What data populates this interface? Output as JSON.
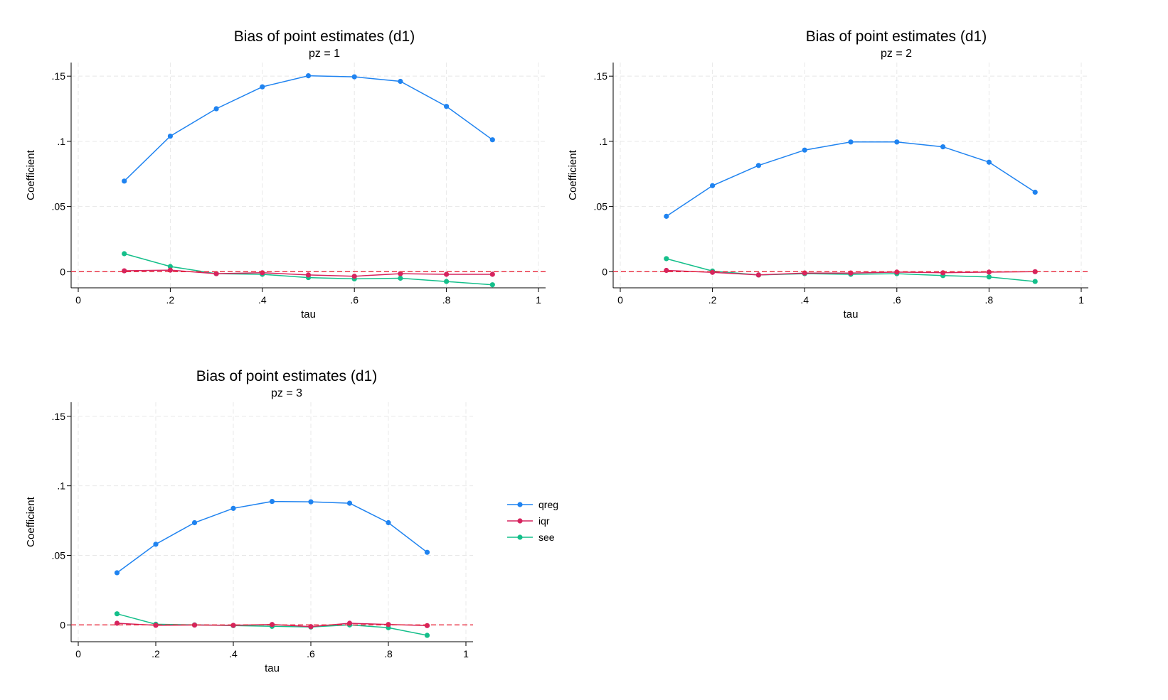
{
  "chart_data": [
    {
      "type": "line",
      "title": "Bias of point estimates (d1)",
      "subtitle": "pz = 1",
      "xlabel": "tau",
      "ylabel": "Coefficient",
      "xlim": [
        0,
        1
      ],
      "ylim": [
        -0.008,
        0.155
      ],
      "x_ticks": [
        0,
        0.2,
        0.4,
        0.6,
        0.8,
        1
      ],
      "x_tick_labels": [
        "0",
        ".2",
        ".4",
        ".6",
        ".8",
        "1"
      ],
      "y_ticks": [
        0,
        0.05,
        0.1,
        0.15
      ],
      "y_tick_labels": [
        "0",
        ".05",
        ".1",
        ".15"
      ],
      "grid": true,
      "reference_line": {
        "y": 0,
        "color": "#e8273a",
        "style": "dashed"
      },
      "x": [
        0.1,
        0.2,
        0.3,
        0.4,
        0.5,
        0.6,
        0.7,
        0.8,
        0.9
      ],
      "series": [
        {
          "name": "qreg",
          "color": "#1f83f0",
          "values": [
            0.0695,
            0.104,
            0.125,
            0.1418,
            0.1503,
            0.1495,
            0.146,
            0.1268,
            0.1012
          ]
        },
        {
          "name": "iqr",
          "color": "#d6245e",
          "values": [
            0.0007,
            0.0012,
            -0.0015,
            -0.0008,
            -0.0025,
            -0.0035,
            -0.0015,
            -0.002,
            -0.002
          ]
        },
        {
          "name": "see",
          "color": "#14bf8a",
          "values": [
            0.0138,
            0.004,
            -0.0015,
            -0.002,
            -0.0045,
            -0.0055,
            -0.005,
            -0.0075,
            -0.01
          ]
        }
      ]
    },
    {
      "type": "line",
      "title": "Bias of point estimates (d1)",
      "subtitle": "pz = 2",
      "xlabel": "tau",
      "ylabel": "Coefficient",
      "xlim": [
        0,
        1
      ],
      "ylim": [
        -0.008,
        0.155
      ],
      "x_ticks": [
        0,
        0.2,
        0.4,
        0.6,
        0.8,
        1
      ],
      "x_tick_labels": [
        "0",
        ".2",
        ".4",
        ".6",
        ".8",
        "1"
      ],
      "y_ticks": [
        0,
        0.05,
        0.1,
        0.15
      ],
      "y_tick_labels": [
        "0",
        ".05",
        ".1",
        ".15"
      ],
      "grid": true,
      "reference_line": {
        "y": 0,
        "color": "#e8273a",
        "style": "dashed"
      },
      "x": [
        0.1,
        0.2,
        0.3,
        0.4,
        0.5,
        0.6,
        0.7,
        0.8,
        0.9
      ],
      "series": [
        {
          "name": "qreg",
          "color": "#1f83f0",
          "values": [
            0.0425,
            0.066,
            0.0815,
            0.0933,
            0.0995,
            0.0995,
            0.0958,
            0.084,
            0.061
          ]
        },
        {
          "name": "iqr",
          "color": "#d6245e",
          "values": [
            0.001,
            -0.0005,
            -0.0025,
            -0.001,
            -0.001,
            -0.0003,
            -0.0008,
            -0.0003,
            0.0
          ]
        },
        {
          "name": "see",
          "color": "#14bf8a",
          "values": [
            0.01,
            0.0005,
            -0.0025,
            -0.0015,
            -0.002,
            -0.0015,
            -0.003,
            -0.004,
            -0.0075
          ]
        }
      ]
    },
    {
      "type": "line",
      "title": "Bias of point estimates (d1)",
      "subtitle": "pz = 3",
      "xlabel": "tau",
      "ylabel": "Coefficient",
      "xlim": [
        0,
        1
      ],
      "ylim": [
        -0.008,
        0.155
      ],
      "x_ticks": [
        0,
        0.2,
        0.4,
        0.6,
        0.8,
        1
      ],
      "x_tick_labels": [
        "0",
        ".2",
        ".4",
        ".6",
        ".8",
        "1"
      ],
      "y_ticks": [
        0,
        0.05,
        0.1,
        0.15
      ],
      "y_tick_labels": [
        "0",
        ".05",
        ".1",
        ".15"
      ],
      "grid": true,
      "reference_line": {
        "y": 0,
        "color": "#e8273a",
        "style": "dashed"
      },
      "x": [
        0.1,
        0.2,
        0.3,
        0.4,
        0.5,
        0.6,
        0.7,
        0.8,
        0.9
      ],
      "series": [
        {
          "name": "qreg",
          "color": "#1f83f0",
          "values": [
            0.0375,
            0.058,
            0.0735,
            0.0838,
            0.0888,
            0.0885,
            0.0875,
            0.0735,
            0.0522
          ]
        },
        {
          "name": "iqr",
          "color": "#d6245e",
          "values": [
            0.0012,
            -0.0003,
            -0.0001,
            -0.0003,
            0.0003,
            -0.0012,
            0.0012,
            0.0003,
            -0.0005
          ]
        },
        {
          "name": "see",
          "color": "#14bf8a",
          "values": [
            0.008,
            0.0005,
            0.0,
            -0.0005,
            -0.001,
            -0.0015,
            0.0,
            -0.002,
            -0.0075
          ]
        }
      ]
    }
  ],
  "legend": {
    "placement": "right of third panel",
    "items": [
      {
        "label": "qreg",
        "color": "#1f83f0"
      },
      {
        "label": "iqr",
        "color": "#d6245e"
      },
      {
        "label": "see",
        "color": "#14bf8a"
      }
    ]
  }
}
